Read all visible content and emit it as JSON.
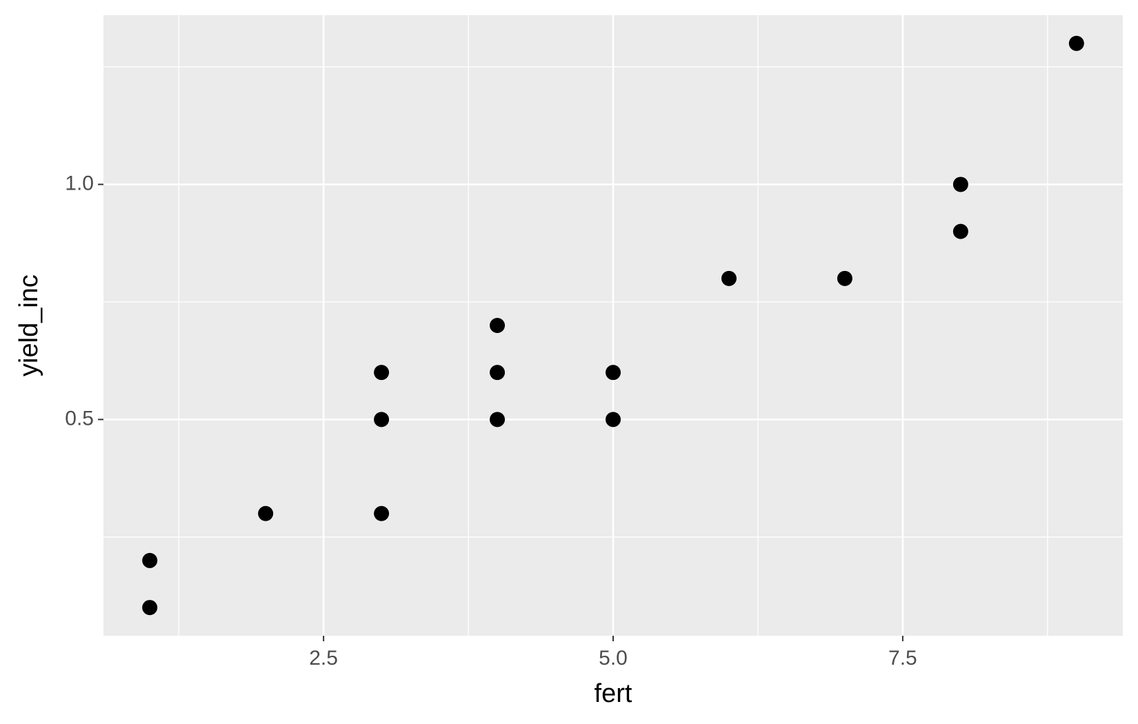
{
  "chart_data": {
    "type": "scatter",
    "x_label": "fert",
    "y_label": "yield_inc",
    "x": [
      1,
      1,
      2,
      3,
      3,
      3,
      4,
      4,
      4,
      5,
      5,
      6,
      7,
      8,
      8,
      9
    ],
    "values": [
      0.2,
      0.1,
      0.3,
      0.6,
      0.5,
      0.3,
      0.7,
      0.6,
      0.5,
      0.6,
      0.5,
      0.8,
      0.8,
      1.0,
      0.9,
      1.3
    ],
    "color": "#000000",
    "xlim": [
      0.6,
      9.4
    ],
    "ylim": [
      0.04,
      1.36
    ],
    "xticks": [
      2.5,
      {
        "value": 5,
        "label": "5.0"
      },
      7.5
    ],
    "yticks": [
      0.5,
      {
        "value": 1,
        "label": "1.0"
      }
    ],
    "xminor": [
      1.25,
      3.75,
      6.25,
      8.75
    ],
    "yminor": [
      0.25,
      0.75,
      1.25
    ],
    "grid": true
  }
}
